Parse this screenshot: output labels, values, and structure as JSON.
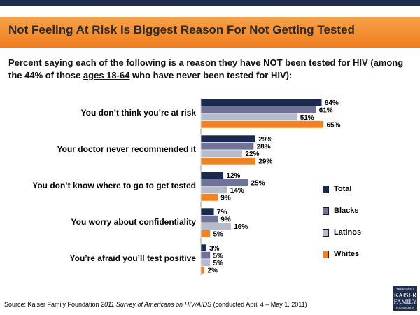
{
  "header": {
    "title": "Not Feeling At Risk Is Biggest Reason For Not Getting Tested"
  },
  "subtitle": {
    "part1": "Percent saying each of the following is a reason they have NOT been tested for HIV (among the 44% of those ",
    "underlined": "ages 18-64",
    "part2": " who have never been tested for HIV):"
  },
  "colors": {
    "header_band": "#f0821f",
    "top_bar": "#1f2d4e",
    "Total": "#1a2a4f",
    "Blacks": "#6f7497",
    "Latinos": "#b7bccc",
    "Whites": "#f0821f"
  },
  "chart_data": {
    "type": "bar",
    "orientation": "horizontal",
    "categories": [
      "You don’t think you’re at risk",
      "Your doctor never recommended it",
      "You don’t know where to go to get tested",
      "You worry about confidentiality",
      "You’re afraid you’ll test positive"
    ],
    "series": [
      {
        "name": "Total",
        "values": [
          64,
          29,
          12,
          7,
          3
        ]
      },
      {
        "name": "Blacks",
        "values": [
          61,
          28,
          25,
          9,
          5
        ]
      },
      {
        "name": "Latinos",
        "values": [
          51,
          22,
          14,
          16,
          5
        ]
      },
      {
        "name": "Whites",
        "values": [
          65,
          29,
          9,
          5,
          2
        ]
      }
    ],
    "value_suffix": "%",
    "xlim": [
      0,
      100
    ],
    "legend_position": "right",
    "grid": false
  },
  "legend": [
    "Total",
    "Blacks",
    "Latinos",
    "Whites"
  ],
  "source": {
    "prefix": "Source: Kaiser Family Foundation ",
    "italic": "2011 Survey of Americans on HIV/AIDS",
    "suffix": " (conducted April 4 – May 1, 2011)"
  },
  "logo": {
    "line1": "THE HENRY J.",
    "line2": "KAISER",
    "line3": "FAMILY",
    "line4": "FOUNDATION"
  }
}
